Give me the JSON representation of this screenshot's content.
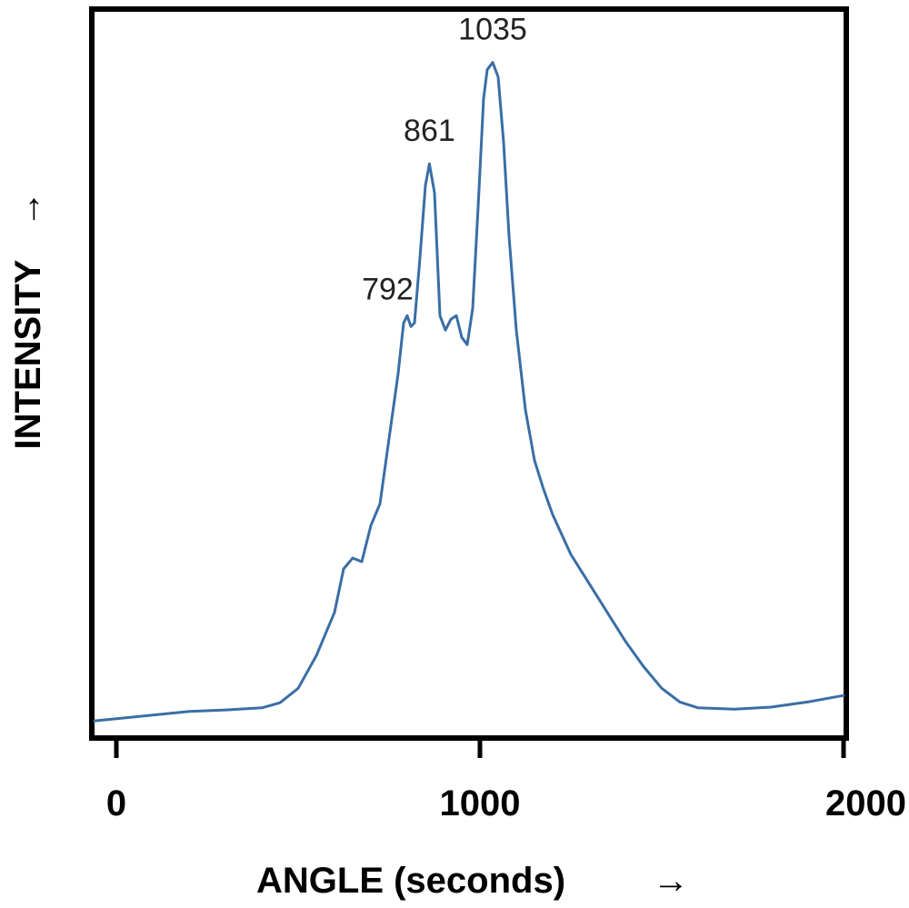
{
  "chart_data": {
    "type": "line",
    "title": "",
    "xlabel": "ANGLE (seconds)",
    "ylabel": "INTENSITY",
    "xlabel_arrow": "→",
    "ylabel_arrow": "→",
    "xlim": [
      -60,
      2000
    ],
    "ylim": [
      0,
      100
    ],
    "x_ticks": [
      0,
      1000,
      2000
    ],
    "x_tick_labels": [
      "0",
      "1000",
      "2000"
    ],
    "y_ticks_shown": false,
    "grid": false,
    "line_color": "#3a6ea5",
    "series": [
      {
        "x": [
          -60,
          0,
          100,
          200,
          300,
          400,
          450,
          500,
          550,
          600,
          625,
          650,
          675,
          700,
          725,
          750,
          775,
          790,
          800,
          810,
          820,
          835,
          850,
          861,
          875,
          890,
          905,
          920,
          935,
          950,
          965,
          980,
          995,
          1010,
          1020,
          1035,
          1050,
          1065,
          1080,
          1100,
          1125,
          1150,
          1175,
          1200,
          1250,
          1300,
          1350,
          1400,
          1450,
          1500,
          1550,
          1600,
          1700,
          1800,
          1900,
          2000
        ],
        "y": [
          2,
          2.3,
          2.8,
          3.3,
          3.5,
          3.8,
          4.5,
          6.5,
          11,
          17,
          23,
          24.5,
          24,
          29,
          32,
          41,
          50,
          57,
          58,
          56.5,
          57,
          66,
          76,
          79,
          75,
          58,
          56,
          57.5,
          58,
          55,
          54,
          59,
          73,
          88,
          92,
          93,
          91,
          82,
          69,
          56,
          45,
          38,
          34,
          30.5,
          25,
          21,
          17,
          13,
          9.5,
          6.5,
          4.6,
          3.8,
          3.6,
          3.9,
          4.6,
          5.5
        ]
      }
    ],
    "annotations": [
      {
        "text": "792",
        "x": 792,
        "y": 58
      },
      {
        "text": "861",
        "x": 861,
        "y": 79
      },
      {
        "text": "1035",
        "x": 1035,
        "y": 93
      }
    ]
  }
}
